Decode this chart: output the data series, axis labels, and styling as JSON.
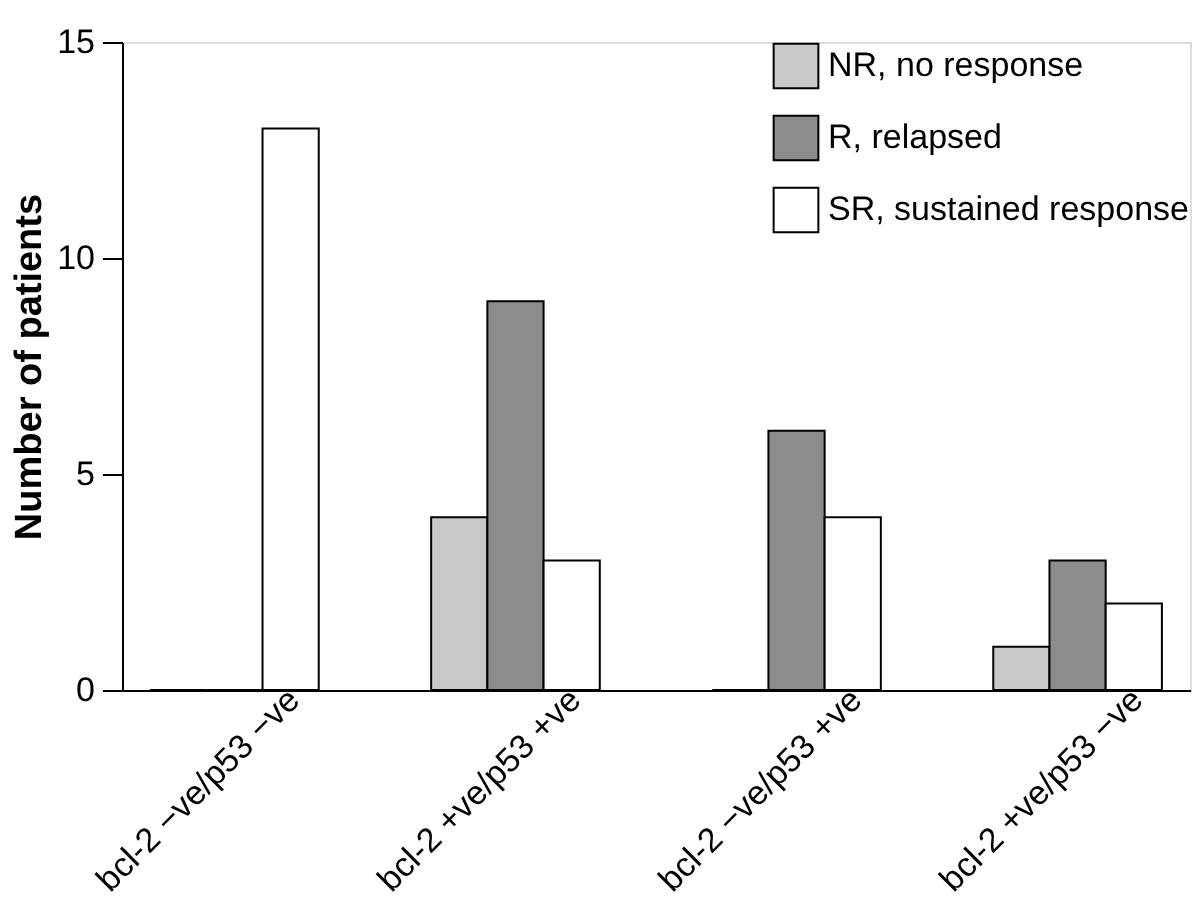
{
  "chart_data": {
    "type": "bar",
    "ylabel": "Number of patients",
    "categories": [
      "bcl-2 −ve/p53 −ve",
      "bcl-2 +ve/p53 +ve",
      "bcl-2 −ve/p53 +ve",
      "bcl-2 +ve/p53 −ve"
    ],
    "series": [
      {
        "name": "NR, no response",
        "color": "#c8c8c8",
        "values": [
          0,
          4,
          0,
          1
        ]
      },
      {
        "name": "R, relapsed",
        "color": "#8c8c8c",
        "values": [
          0,
          9,
          6,
          3
        ]
      },
      {
        "name": "SR, sustained response",
        "color": "#ffffff",
        "values": [
          13,
          3,
          4,
          2
        ]
      }
    ],
    "ylim": [
      0,
      15
    ],
    "yticks": [
      0,
      5,
      10,
      15
    ],
    "grid": false,
    "legend": "top right"
  }
}
